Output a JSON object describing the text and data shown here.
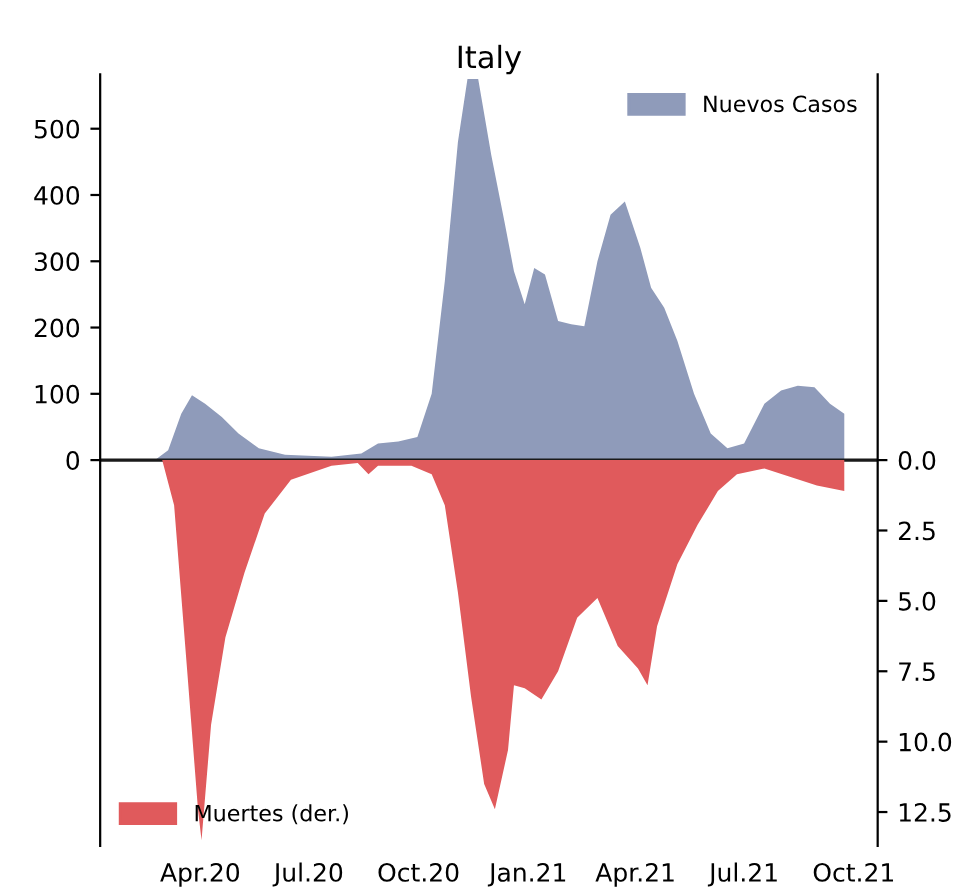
{
  "chart_data": {
    "type": "area",
    "title": "Italy",
    "xlim": [
      "2020-01-08",
      "2021-10-21"
    ],
    "xticks": [
      {
        "value": "2020-04-01",
        "label": "Apr.20"
      },
      {
        "value": "2020-07-01",
        "label": "Jul.20"
      },
      {
        "value": "2020-10-01",
        "label": "Oct.20"
      },
      {
        "value": "2021-01-01",
        "label": "Jan.21"
      },
      {
        "value": "2021-04-01",
        "label": "Apr.21"
      },
      {
        "value": "2021-07-01",
        "label": "Jul.21"
      },
      {
        "value": "2021-10-01",
        "label": "Oct.21"
      }
    ],
    "ylim": [
      -582,
      582
    ],
    "yticks": [
      0,
      100,
      200,
      300,
      400,
      500
    ],
    "y2lim": [
      13.7,
      -13.7
    ],
    "y2ticks": [
      {
        "value": 0,
        "label": "0.0"
      },
      {
        "value": 2.5,
        "label": "2.5"
      },
      {
        "value": 5,
        "label": "5.0"
      },
      {
        "value": 7.5,
        "label": "7.5"
      },
      {
        "value": 10,
        "label": "10.0"
      },
      {
        "value": 12.5,
        "label": "12.5"
      }
    ],
    "grid": false,
    "ref_lines": [
      {
        "axis": "y",
        "value": 0,
        "color": "#1a1a1a"
      }
    ],
    "legend": "top right",
    "series": [
      {
        "name": "Nuevos Casos",
        "color": "#8f9bba",
        "x": [
          "2020-02-23",
          "2020-03-05",
          "2020-03-16",
          "2020-03-25",
          "2020-04-05",
          "2020-04-19",
          "2020-05-03",
          "2020-05-20",
          "2020-06-11",
          "2020-07-20",
          "2020-08-14",
          "2020-08-28",
          "2020-09-14",
          "2020-09-30",
          "2020-10-12",
          "2020-10-23",
          "2020-11-03",
          "2020-11-11",
          "2020-11-20",
          "2020-12-01",
          "2020-12-12",
          "2020-12-20",
          "2020-12-29",
          "2021-01-06",
          "2021-01-15",
          "2021-01-26",
          "2021-02-06",
          "2021-02-17",
          "2021-02-28",
          "2021-03-11",
          "2021-03-23",
          "2021-04-05",
          "2021-04-14",
          "2021-04-25",
          "2021-05-06",
          "2021-05-20",
          "2021-06-03",
          "2021-06-17",
          "2021-07-01",
          "2021-07-18",
          "2021-08-01",
          "2021-08-15",
          "2021-08-29",
          "2021-09-11",
          "2021-09-23"
        ],
        "values": [
          0,
          15,
          70,
          98,
          85,
          65,
          40,
          18,
          8,
          5,
          10,
          25,
          28,
          35,
          100,
          270,
          480,
          575,
          575,
          460,
          360,
          285,
          235,
          290,
          280,
          210,
          205,
          202,
          300,
          370,
          390,
          320,
          260,
          230,
          180,
          100,
          40,
          18,
          25,
          85,
          105,
          112,
          110,
          85,
          70
        ]
      },
      {
        "name": "Muertes (der.)",
        "color": "#e05a5c",
        "axis": "y2",
        "x": [
          "2020-02-29",
          "2020-03-10",
          "2020-03-21",
          "2020-03-30",
          "2020-04-02",
          "2020-04-10",
          "2020-04-22",
          "2020-05-08",
          "2020-05-25",
          "2020-06-16",
          "2020-07-20",
          "2020-08-11",
          "2020-08-20",
          "2020-08-28",
          "2020-09-25",
          "2020-10-12",
          "2020-10-23",
          "2020-11-03",
          "2020-11-14",
          "2020-11-25",
          "2020-12-04",
          "2020-12-15",
          "2020-12-20",
          "2020-12-29",
          "2021-01-12",
          "2021-01-26",
          "2021-02-11",
          "2021-02-28",
          "2021-03-17",
          "2021-04-03",
          "2021-04-11",
          "2021-04-19",
          "2021-05-06",
          "2021-05-23",
          "2021-06-09",
          "2021-06-25",
          "2021-07-18",
          "2021-08-09",
          "2021-08-31",
          "2021-09-23"
        ],
        "values": [
          0,
          1.6,
          7.5,
          12.4,
          13.5,
          9.4,
          6.3,
          4.0,
          1.9,
          0.7,
          0.2,
          0.1,
          0.5,
          0.2,
          0.2,
          0.5,
          1.6,
          4.7,
          8.4,
          11.5,
          12.4,
          10.3,
          8.0,
          8.1,
          8.5,
          7.5,
          5.6,
          4.9,
          6.6,
          7.4,
          8.0,
          5.9,
          3.7,
          2.3,
          1.1,
          0.5,
          0.3,
          0.6,
          0.9,
          1.1
        ]
      }
    ]
  }
}
